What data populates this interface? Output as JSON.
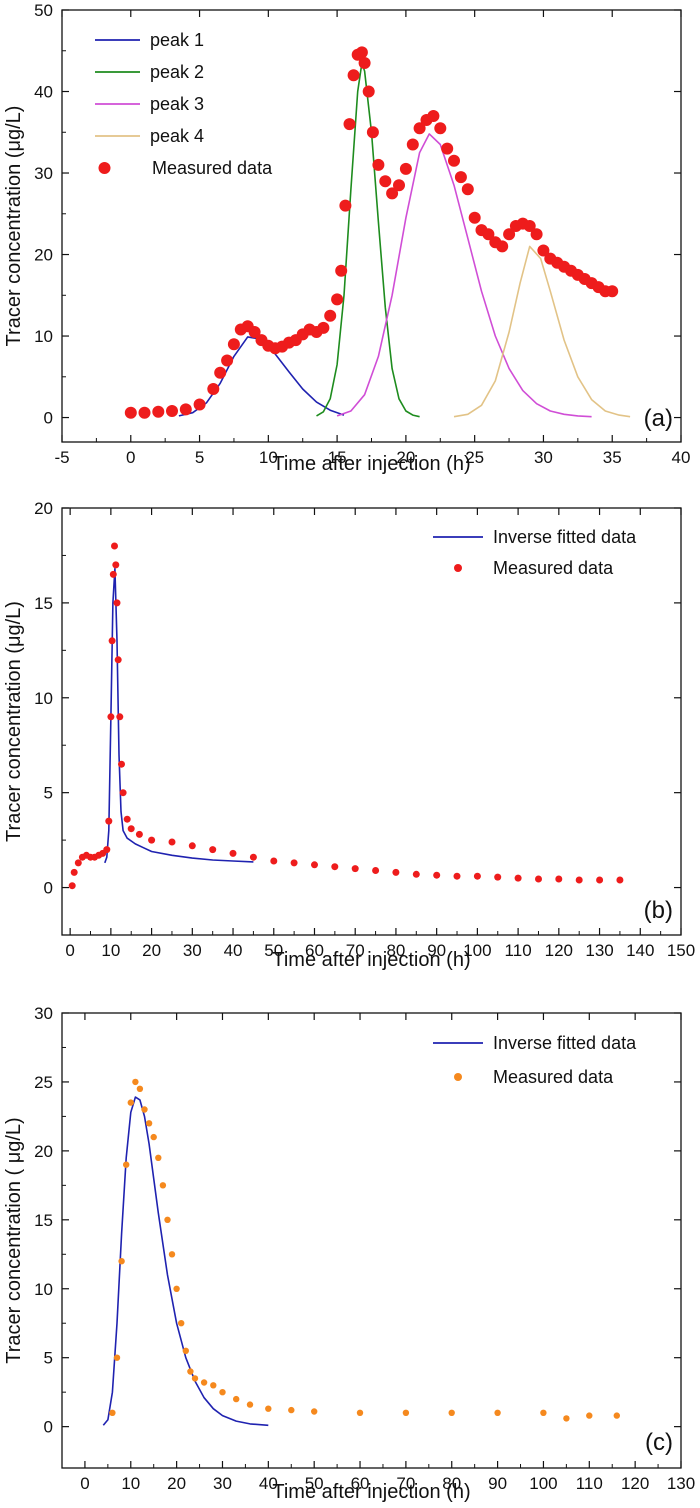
{
  "chart_data": [
    {
      "type": "line",
      "panel_label": "(a)",
      "xlabel": "Time after injection (h)",
      "ylabel": "Tracer concentration (μg/L)",
      "xlim": [
        -5,
        40
      ],
      "ylim": [
        -3,
        50
      ],
      "xticks": [
        -5,
        0,
        5,
        10,
        15,
        20,
        25,
        30,
        35,
        40
      ],
      "yticks": [
        0,
        10,
        20,
        30,
        40,
        50
      ],
      "legend_position": "top-left",
      "colors": {
        "peak1": "#1f22b0",
        "peak2": "#1e8c1e",
        "peak3": "#d04ed6",
        "peak4": "#e2c387",
        "measured": "#ee1c1c"
      },
      "series": [
        {
          "name": "peak 1",
          "kind": "line",
          "color": "#1f22b0",
          "x": [
            3.5,
            4.5,
            5.5,
            6.5,
            7.5,
            8.5,
            9.5,
            10.5,
            11.5,
            12.5,
            13.5,
            14.5,
            15.5
          ],
          "y": [
            0.2,
            0.6,
            1.8,
            4.2,
            7.5,
            9.9,
            9.6,
            7.8,
            5.6,
            3.5,
            1.9,
            0.9,
            0.3
          ]
        },
        {
          "name": "peak 2",
          "kind": "line",
          "color": "#1e8c1e",
          "x": [
            13.5,
            14,
            14.5,
            15,
            15.5,
            16,
            16.5,
            16.8,
            17,
            17.5,
            18,
            18.5,
            19,
            19.5,
            20,
            20.5,
            21
          ],
          "y": [
            0.2,
            0.7,
            2.3,
            6.5,
            15.0,
            28.0,
            40.0,
            43.5,
            42.5,
            35.0,
            24.0,
            13.5,
            6.0,
            2.3,
            0.8,
            0.3,
            0.1
          ]
        },
        {
          "name": "peak 3",
          "kind": "line",
          "color": "#d04ed6",
          "x": [
            15,
            16,
            17,
            18,
            19,
            20,
            21,
            21.7,
            22.5,
            23.5,
            24.5,
            25.5,
            26.5,
            27.5,
            28.5,
            29.5,
            30.5,
            31.5,
            32.5,
            33.5
          ],
          "y": [
            0.2,
            0.8,
            2.8,
            7.5,
            15.0,
            24.5,
            32.5,
            34.8,
            33.5,
            28.5,
            22.0,
            15.5,
            10.0,
            6.0,
            3.3,
            1.7,
            0.8,
            0.4,
            0.2,
            0.1
          ]
        },
        {
          "name": "peak 4",
          "kind": "line",
          "color": "#e2c387",
          "x": [
            23.5,
            24.5,
            25.5,
            26.5,
            27.5,
            28.3,
            29,
            29.8,
            30.5,
            31.5,
            32.5,
            33.5,
            34.5,
            35.5,
            36.3
          ],
          "y": [
            0.1,
            0.4,
            1.5,
            4.5,
            10.5,
            16.5,
            21.0,
            19.5,
            15.5,
            9.5,
            5.0,
            2.2,
            0.8,
            0.3,
            0.1
          ]
        },
        {
          "name": "Measured data",
          "kind": "scatter",
          "color": "#ee1c1c",
          "x": [
            0,
            1,
            2,
            3,
            4,
            5,
            6,
            6.5,
            7,
            7.5,
            8,
            8.5,
            9,
            9.5,
            10,
            10.5,
            11,
            11.5,
            12,
            12.5,
            13,
            13.5,
            14,
            14.5,
            15,
            15.3,
            15.6,
            15.9,
            16.2,
            16.5,
            16.8,
            17,
            17.3,
            17.6,
            18,
            18.5,
            19,
            19.5,
            20,
            20.5,
            21,
            21.5,
            22,
            22.5,
            23,
            23.5,
            24,
            24.5,
            25,
            25.5,
            26,
            26.5,
            27,
            27.5,
            28,
            28.5,
            29,
            29.5,
            30,
            30.5,
            31,
            31.5,
            32,
            32.5,
            33,
            33.5,
            34,
            34.5,
            35
          ],
          "y": [
            0.6,
            0.6,
            0.7,
            0.8,
            1.0,
            1.6,
            3.5,
            5.5,
            7.0,
            9.0,
            10.8,
            11.2,
            10.5,
            9.5,
            8.8,
            8.5,
            8.7,
            9.2,
            9.5,
            10.2,
            10.8,
            10.5,
            11.0,
            12.5,
            14.5,
            18.0,
            26.0,
            36.0,
            42.0,
            44.5,
            44.8,
            43.5,
            40.0,
            35.0,
            31.0,
            29.0,
            27.5,
            28.5,
            30.5,
            33.5,
            35.5,
            36.5,
            37.0,
            35.5,
            33.0,
            31.5,
            29.5,
            28.0,
            24.5,
            23.0,
            22.5,
            21.5,
            21.0,
            22.5,
            23.5,
            23.8,
            23.5,
            22.5,
            20.5,
            19.5,
            19.0,
            18.5,
            18.0,
            17.5,
            17.0,
            16.5,
            16.0,
            15.5,
            15.5
          ]
        }
      ]
    },
    {
      "type": "line",
      "panel_label": "(b)",
      "xlabel": "Time after injection (h)",
      "ylabel": "Tracer concentration (μg/L)",
      "xlim": [
        -2,
        150
      ],
      "ylim": [
        -2.5,
        20
      ],
      "xticks": [
        0,
        10,
        20,
        30,
        40,
        50,
        60,
        70,
        80,
        90,
        100,
        110,
        120,
        130,
        140,
        150
      ],
      "yticks": [
        0,
        5,
        10,
        15,
        20
      ],
      "legend_position": "top-right",
      "colors": {
        "fitted": "#1f22b0",
        "measured": "#ee1c1c"
      },
      "series": [
        {
          "name": "Inverse fitted data",
          "kind": "line",
          "color": "#1f22b0",
          "x": [
            8.5,
            9,
            9.5,
            10,
            10.5,
            11,
            11.5,
            12,
            12.5,
            13,
            14,
            16,
            18,
            20,
            25,
            30,
            35,
            40,
            45
          ],
          "y": [
            1.3,
            1.6,
            3.0,
            9.0,
            15.0,
            16.8,
            13.0,
            7.0,
            4.0,
            3.0,
            2.6,
            2.3,
            2.1,
            1.9,
            1.7,
            1.55,
            1.45,
            1.4,
            1.35
          ]
        },
        {
          "name": "Measured data",
          "kind": "scatter",
          "color": "#ee1c1c",
          "x": [
            0.5,
            1,
            2,
            3,
            4,
            5,
            6,
            7,
            8,
            9,
            9.5,
            10,
            10.3,
            10.6,
            10.9,
            11.2,
            11.5,
            11.8,
            12.2,
            12.6,
            13,
            14,
            15,
            17,
            20,
            25,
            30,
            35,
            40,
            45,
            50,
            55,
            60,
            65,
            70,
            75,
            80,
            85,
            90,
            95,
            100,
            105,
            110,
            115,
            120,
            125,
            130,
            135
          ],
          "y": [
            0.1,
            0.8,
            1.3,
            1.6,
            1.7,
            1.6,
            1.6,
            1.7,
            1.8,
            2.0,
            3.5,
            9.0,
            13.0,
            16.5,
            18.0,
            17.0,
            15.0,
            12.0,
            9.0,
            6.5,
            5.0,
            3.6,
            3.1,
            2.8,
            2.5,
            2.4,
            2.2,
            2.0,
            1.8,
            1.6,
            1.4,
            1.3,
            1.2,
            1.1,
            1.0,
            0.9,
            0.8,
            0.7,
            0.65,
            0.6,
            0.6,
            0.55,
            0.5,
            0.45,
            0.45,
            0.4,
            0.4,
            0.4
          ]
        }
      ]
    },
    {
      "type": "line",
      "panel_label": "(c)",
      "xlabel": "Time after injection (h)",
      "ylabel": "Tracer concentration ( μg/L)",
      "xlim": [
        -5,
        130
      ],
      "ylim": [
        -3,
        30
      ],
      "xticks": [
        0,
        10,
        20,
        30,
        40,
        50,
        60,
        70,
        80,
        90,
        100,
        110,
        120,
        130
      ],
      "yticks": [
        0,
        5,
        10,
        15,
        20,
        25,
        30
      ],
      "legend_position": "top-right",
      "colors": {
        "fitted": "#1f22b0",
        "measured": "#f5891e"
      },
      "series": [
        {
          "name": "Inverse fitted data",
          "kind": "line",
          "color": "#1f22b0",
          "x": [
            4,
            5,
            6,
            7,
            8,
            9,
            10,
            11,
            12,
            13,
            14,
            15,
            16,
            18,
            20,
            22,
            24,
            26,
            28,
            30,
            33,
            36,
            40
          ],
          "y": [
            0.1,
            0.5,
            2.5,
            7.5,
            14.0,
            19.5,
            22.8,
            23.9,
            23.7,
            22.5,
            20.5,
            18.0,
            15.5,
            11.0,
            7.5,
            5.0,
            3.3,
            2.1,
            1.3,
            0.8,
            0.4,
            0.2,
            0.1
          ]
        },
        {
          "name": "Measured data",
          "kind": "scatter",
          "color": "#f5891e",
          "x": [
            6,
            7,
            8,
            9,
            10,
            11,
            12,
            13,
            14,
            15,
            16,
            17,
            18,
            19,
            20,
            21,
            22,
            23,
            24,
            26,
            28,
            30,
            33,
            36,
            40,
            45,
            50,
            60,
            70,
            80,
            90,
            100,
            105,
            110,
            116
          ],
          "y": [
            1.0,
            5.0,
            12.0,
            19.0,
            23.5,
            25.0,
            24.5,
            23.0,
            22.0,
            21.0,
            19.5,
            17.5,
            15.0,
            12.5,
            10.0,
            7.5,
            5.5,
            4.0,
            3.5,
            3.2,
            3.0,
            2.5,
            2.0,
            1.6,
            1.3,
            1.2,
            1.1,
            1.0,
            1.0,
            1.0,
            1.0,
            1.0,
            0.6,
            0.8,
            0.8
          ]
        }
      ]
    }
  ]
}
